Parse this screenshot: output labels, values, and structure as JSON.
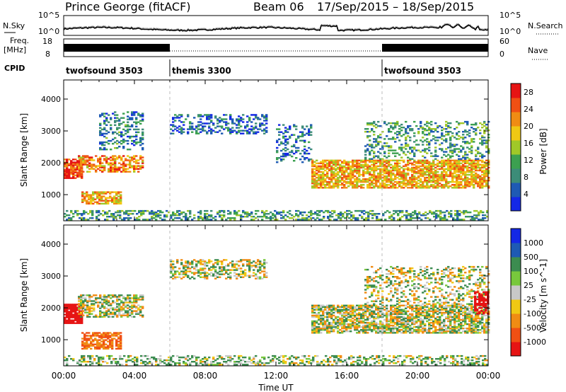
{
  "header": {
    "station": "Prince George (fitACF)",
    "beam_label": "Beam 06",
    "date_range": "17/Sep/2015 – 18/Sep/2015"
  },
  "top_panels": {
    "nsky_label": "N.Sky",
    "nsearch_label": "N.Search",
    "noise_ticks": [
      "10^5",
      "10^0"
    ],
    "freq_label_1": "Freq.",
    "freq_label_2": "[MHz]",
    "freq_ticks": [
      "18",
      "8"
    ],
    "nave_label": "Nave",
    "nave_ticks": [
      "60",
      "0"
    ],
    "cpid_label": "CPID",
    "cpid_segments": [
      {
        "name": "twofsound 3503",
        "start_h": 0,
        "end_h": 6
      },
      {
        "name": "themis 3300",
        "start_h": 6,
        "end_h": 18
      },
      {
        "name": "twofsound 3503",
        "start_h": 18,
        "end_h": 24
      }
    ]
  },
  "colors": {
    "power": [
      "#1428e6",
      "#1e5ab4",
      "#3c8c78",
      "#3ca050",
      "#a0c828",
      "#f0c814",
      "#f08c14",
      "#f05014",
      "#e61414"
    ],
    "velocity": [
      "#e61414",
      "#f05014",
      "#f08c14",
      "#f0c814",
      "#c8c8c8",
      "#78c83c",
      "#3c8c50",
      "#1e5ab4",
      "#1428e6"
    ],
    "grey": "#c8c8c8"
  },
  "chart_data": [
    {
      "type": "heatmap",
      "title": "Power",
      "ylabel": "Slant Range [km]",
      "xlabel": "",
      "x_range_hours": [
        0,
        24
      ],
      "ylim": [
        180,
        4600
      ],
      "yticks": [
        1000,
        2000,
        3000,
        4000
      ],
      "colorbar": {
        "label": "Power [dB]",
        "ticks": [
          4,
          8,
          12,
          16,
          20,
          24,
          28
        ],
        "range": [
          0,
          30
        ]
      },
      "echo_bands": [
        {
          "t0": 0.0,
          "t1": 1.0,
          "r0": 1500,
          "r1": 2100,
          "value": 26,
          "density": 0.85
        },
        {
          "t0": 1.0,
          "t1": 3.2,
          "r0": 700,
          "r1": 1100,
          "value": 20,
          "density": 0.7
        },
        {
          "t0": 0.8,
          "t1": 4.5,
          "r0": 1700,
          "r1": 2200,
          "value": 22,
          "density": 0.6
        },
        {
          "t0": 2.0,
          "t1": 4.5,
          "r0": 2400,
          "r1": 3600,
          "value": 8,
          "density": 0.35
        },
        {
          "t0": 6.0,
          "t1": 11.5,
          "r0": 2900,
          "r1": 3500,
          "value": 6,
          "density": 0.4
        },
        {
          "t0": 12.0,
          "t1": 14.0,
          "r0": 2000,
          "r1": 3200,
          "value": 6,
          "density": 0.3
        },
        {
          "t0": 14.0,
          "t1": 24.0,
          "r0": 1200,
          "r1": 2100,
          "value": 20,
          "density": 0.75
        },
        {
          "t0": 17.0,
          "t1": 24.0,
          "r0": 2100,
          "r1": 3300,
          "value": 10,
          "density": 0.3
        },
        {
          "t0": 0.0,
          "t1": 24.0,
          "r0": 200,
          "r1": 500,
          "value": 10,
          "density": 0.45
        }
      ]
    },
    {
      "type": "heatmap",
      "title": "Velocity",
      "ylabel": "Slant Range [km]",
      "xlabel": "Time UT",
      "x_range_hours": [
        0,
        24
      ],
      "xticks": [
        "00:00",
        "04:00",
        "08:00",
        "12:00",
        "16:00",
        "20:00",
        "00:00"
      ],
      "ylim": [
        180,
        4600
      ],
      "yticks": [
        1000,
        2000,
        3000,
        4000
      ],
      "colorbar": {
        "label": "Velocity [m s^-1]",
        "ticks": [
          "1000",
          "500",
          "100",
          "25",
          "-25",
          "-100",
          "-500",
          "-1000"
        ]
      },
      "echo_bands": [
        {
          "t0": 0.0,
          "t1": 1.0,
          "r0": 1500,
          "r1": 2100,
          "value": -1000,
          "density": 0.85
        },
        {
          "t0": 1.0,
          "t1": 3.2,
          "r0": 700,
          "r1": 1200,
          "value": -300,
          "density": 0.7
        },
        {
          "t0": 0.8,
          "t1": 4.5,
          "r0": 1700,
          "r1": 2400,
          "value": 0,
          "density": 0.6
        },
        {
          "t0": 6.0,
          "t1": 11.5,
          "r0": 2900,
          "r1": 3500,
          "value": 0,
          "density": 0.45
        },
        {
          "t0": 14.0,
          "t1": 24.0,
          "r0": 1200,
          "r1": 2100,
          "value": 0,
          "density": 0.75
        },
        {
          "t0": 17.0,
          "t1": 24.0,
          "r0": 2100,
          "r1": 3300,
          "value": 0,
          "density": 0.3
        },
        {
          "t0": 0.0,
          "t1": 24.0,
          "r0": 200,
          "r1": 500,
          "value": 60,
          "density": 0.4
        },
        {
          "t0": 23.2,
          "t1": 24.0,
          "r0": 1800,
          "r1": 2500,
          "value": -1000,
          "density": 0.6
        }
      ]
    }
  ]
}
